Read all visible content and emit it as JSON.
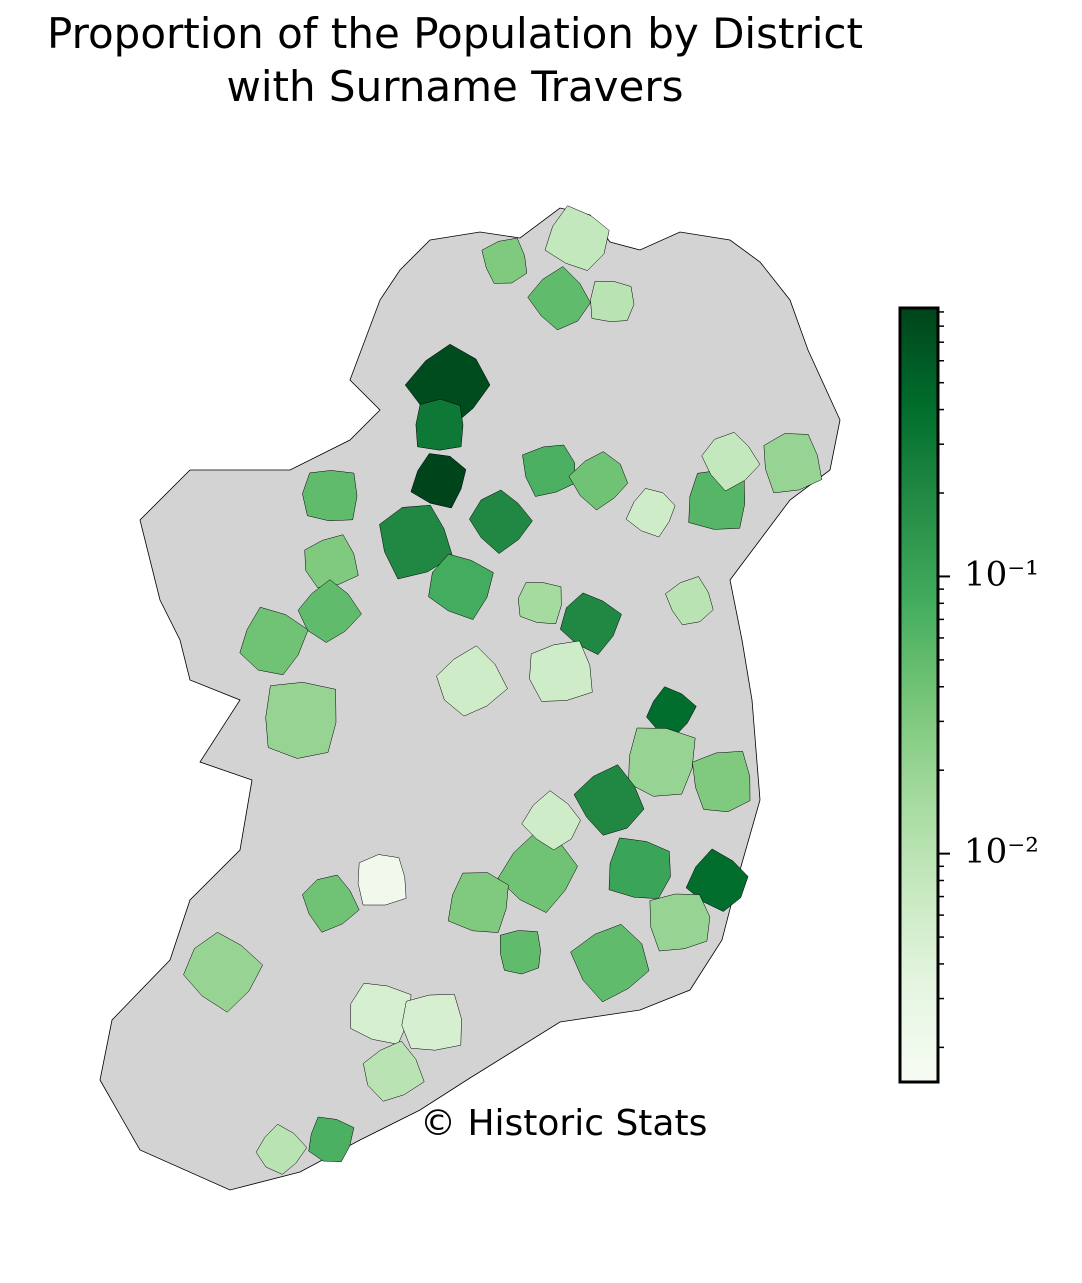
{
  "chart_data": {
    "type": "choropleth",
    "title": [
      "Proportion of the Population by District",
      "with Surname Travers"
    ],
    "annotation": "© Historic Stats",
    "colormap": "Greens",
    "no_data_color": "#d3d3d3",
    "log_scale": true,
    "clim": [
      0.0015,
      0.93
    ],
    "cticks": [
      {
        "value": 0.1,
        "label": "10⁻¹"
      },
      {
        "value": 0.01,
        "label": "10⁻²"
      }
    ],
    "cticks_minor": [
      0.002,
      0.003,
      0.004,
      0.005,
      0.006,
      0.007,
      0.008,
      0.009,
      0.02,
      0.03,
      0.04,
      0.05,
      0.06,
      0.07,
      0.08,
      0.09,
      0.2,
      0.3,
      0.4,
      0.5,
      0.6,
      0.7,
      0.8,
      0.9
    ],
    "values": [
      0.8,
      0.93,
      0.3,
      0.2,
      0.2,
      0.08,
      0.05,
      0.03,
      0.05,
      0.04,
      0.02,
      0.03,
      0.05,
      0.008,
      0.01,
      0.07,
      0.04,
      0.006,
      0.06,
      0.02,
      0.008,
      0.2,
      0.015,
      0.006,
      0.006,
      0.4,
      0.02,
      0.03,
      0.2,
      0.4,
      0.1,
      0.02,
      0.05,
      0.04,
      0.03,
      0.002,
      0.04,
      0.02,
      0.005,
      0.005,
      0.01,
      0.01,
      0.07,
      0.05,
      0.01,
      0.006
    ]
  }
}
